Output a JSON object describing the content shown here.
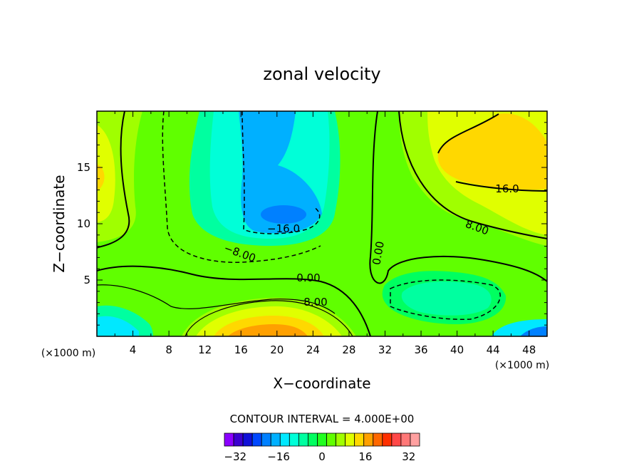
{
  "chart_data": {
    "type": "contour",
    "title": "zonal velocity",
    "xlabel": "X−coordinate",
    "ylabel": "Z−coordinate",
    "x_unit_left": "(×1000 m)",
    "x_unit_right": "(×1000 m)",
    "xlim": [
      0,
      50
    ],
    "ylim": [
      0,
      20
    ],
    "x_ticks": [
      4,
      8,
      12,
      16,
      20,
      24,
      28,
      32,
      36,
      40,
      44,
      48
    ],
    "y_ticks": [
      5,
      10,
      15
    ],
    "contour_interval_text": "CONTOUR INTERVAL = 4.000E+00",
    "contour_labels": [
      "16.0",
      "8.00",
      "−16.0",
      "−8.00",
      "0.00",
      "0.00",
      "8.00"
    ],
    "colorbar": {
      "min": -36,
      "max": 36,
      "step": 4,
      "tick_values": [
        -32,
        -16,
        0,
        16,
        32
      ],
      "tick_labels": [
        "−32",
        "−16",
        "0",
        "16",
        "32"
      ],
      "colors": [
        "#8b00ff",
        "#3b00cf",
        "#1010d8",
        "#0048ff",
        "#0080ff",
        "#00b0ff",
        "#00e8ff",
        "#00ffd8",
        "#00ffa0",
        "#00ff60",
        "#20ff20",
        "#60ff00",
        "#a0ff00",
        "#e0ff00",
        "#ffd800",
        "#ffa000",
        "#ff6800",
        "#ff3000",
        "#ff4848",
        "#ff7878",
        "#ffa0a0"
      ]
    }
  }
}
